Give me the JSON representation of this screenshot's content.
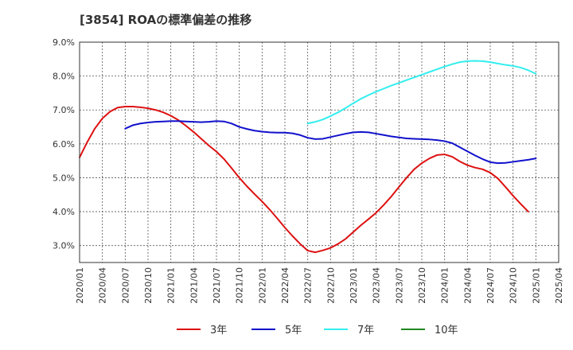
{
  "chart_data": {
    "type": "line",
    "title": "[3854]  ROAの標準偏差の推移",
    "xlabel": "",
    "ylabel": "",
    "x_ticks": [
      "2020/01",
      "2020/04",
      "2020/07",
      "2020/10",
      "2021/01",
      "2021/04",
      "2021/07",
      "2021/10",
      "2022/01",
      "2022/04",
      "2022/07",
      "2022/10",
      "2023/01",
      "2023/04",
      "2023/07",
      "2023/10",
      "2024/01",
      "2024/04",
      "2024/07",
      "2024/10",
      "2025/01",
      "2025/04"
    ],
    "y_ticks": [
      "3.0%",
      "4.0%",
      "5.0%",
      "6.0%",
      "7.0%",
      "8.0%",
      "9.0%"
    ],
    "ylim": [
      2.5,
      9.0
    ],
    "grid": true,
    "legend_position": "bottom",
    "series": [
      {
        "name": "3年",
        "color": "#dd1111",
        "x": [
          "2020/01",
          "2020/02",
          "2020/03",
          "2020/04",
          "2020/05",
          "2020/06",
          "2020/07",
          "2020/08",
          "2020/09",
          "2020/10",
          "2020/11",
          "2020/12",
          "2021/01",
          "2021/02",
          "2021/03",
          "2021/04",
          "2021/05",
          "2021/06",
          "2021/07",
          "2021/08",
          "2021/09",
          "2021/10",
          "2021/11",
          "2021/12",
          "2022/01",
          "2022/02",
          "2022/03",
          "2022/04",
          "2022/05",
          "2022/06",
          "2022/07",
          "2022/08",
          "2022/09",
          "2022/10",
          "2022/11",
          "2022/12",
          "2023/01",
          "2023/02",
          "2023/03",
          "2023/04",
          "2023/05",
          "2023/06",
          "2023/07",
          "2023/08",
          "2023/09",
          "2023/10",
          "2023/11",
          "2023/12",
          "2024/01",
          "2024/02",
          "2024/03",
          "2024/04",
          "2024/05",
          "2024/06",
          "2024/07",
          "2024/08",
          "2024/09",
          "2024/10",
          "2024/11",
          "2024/12",
          "2025/01"
        ],
        "values": [
          5.6,
          6.05,
          6.45,
          6.75,
          6.95,
          7.07,
          7.1,
          7.1,
          7.08,
          7.05,
          7.0,
          6.93,
          6.83,
          6.7,
          6.53,
          6.35,
          6.15,
          5.95,
          5.77,
          5.55,
          5.28,
          5.0,
          4.75,
          4.52,
          4.3,
          4.06,
          3.8,
          3.53,
          3.28,
          3.05,
          2.85,
          2.8,
          2.86,
          2.93,
          3.05,
          3.2,
          3.4,
          3.6,
          3.78,
          3.97,
          4.2,
          4.45,
          4.73,
          5.0,
          5.25,
          5.43,
          5.57,
          5.67,
          5.69,
          5.62,
          5.48,
          5.37,
          5.3,
          5.25,
          5.15,
          4.98,
          4.73,
          4.47,
          4.23,
          4.0,
          null
        ]
      },
      {
        "name": "5年",
        "color": "#1111cc",
        "x": [
          "2020/07",
          "2020/08",
          "2020/09",
          "2020/10",
          "2020/11",
          "2020/12",
          "2021/01",
          "2021/02",
          "2021/03",
          "2021/04",
          "2021/05",
          "2021/06",
          "2021/07",
          "2021/08",
          "2021/09",
          "2021/10",
          "2021/11",
          "2021/12",
          "2022/01",
          "2022/02",
          "2022/03",
          "2022/04",
          "2022/05",
          "2022/06",
          "2022/07",
          "2022/08",
          "2022/09",
          "2022/10",
          "2022/11",
          "2022/12",
          "2023/01",
          "2023/02",
          "2023/03",
          "2023/04",
          "2023/05",
          "2023/06",
          "2023/07",
          "2023/08",
          "2023/09",
          "2023/10",
          "2023/11",
          "2023/12",
          "2024/01",
          "2024/02",
          "2024/03",
          "2024/04",
          "2024/05",
          "2024/06",
          "2024/07",
          "2024/08",
          "2024/09",
          "2024/10",
          "2024/11",
          "2024/12",
          "2025/01"
        ],
        "values": [
          6.45,
          6.55,
          6.6,
          6.63,
          6.65,
          6.66,
          6.67,
          6.67,
          6.66,
          6.65,
          6.64,
          6.65,
          6.67,
          6.66,
          6.6,
          6.5,
          6.44,
          6.39,
          6.36,
          6.34,
          6.33,
          6.33,
          6.31,
          6.26,
          6.18,
          6.14,
          6.15,
          6.2,
          6.25,
          6.3,
          6.34,
          6.35,
          6.34,
          6.3,
          6.26,
          6.22,
          6.19,
          6.16,
          6.15,
          6.14,
          6.13,
          6.11,
          6.08,
          6.02,
          5.9,
          5.78,
          5.66,
          5.55,
          5.46,
          5.43,
          5.44,
          5.47,
          5.5,
          5.53,
          5.57
        ]
      },
      {
        "name": "7年",
        "color": "#33eeee",
        "x": [
          "2022/07",
          "2022/08",
          "2022/09",
          "2022/10",
          "2022/11",
          "2022/12",
          "2023/01",
          "2023/02",
          "2023/03",
          "2023/04",
          "2023/05",
          "2023/06",
          "2023/07",
          "2023/08",
          "2023/09",
          "2023/10",
          "2023/11",
          "2023/12",
          "2024/01",
          "2024/02",
          "2024/03",
          "2024/04",
          "2024/05",
          "2024/06",
          "2024/07",
          "2024/08",
          "2024/09",
          "2024/10",
          "2024/11",
          "2024/12",
          "2025/01"
        ],
        "values": [
          6.6,
          6.65,
          6.72,
          6.82,
          6.93,
          7.06,
          7.2,
          7.33,
          7.44,
          7.54,
          7.63,
          7.72,
          7.8,
          7.88,
          7.96,
          8.04,
          8.12,
          8.2,
          8.28,
          8.35,
          8.41,
          8.44,
          8.45,
          8.44,
          8.41,
          8.37,
          8.33,
          8.3,
          8.25,
          8.17,
          8.07
        ]
      },
      {
        "name": "10年",
        "color": "#228822",
        "x": [],
        "values": []
      }
    ]
  }
}
